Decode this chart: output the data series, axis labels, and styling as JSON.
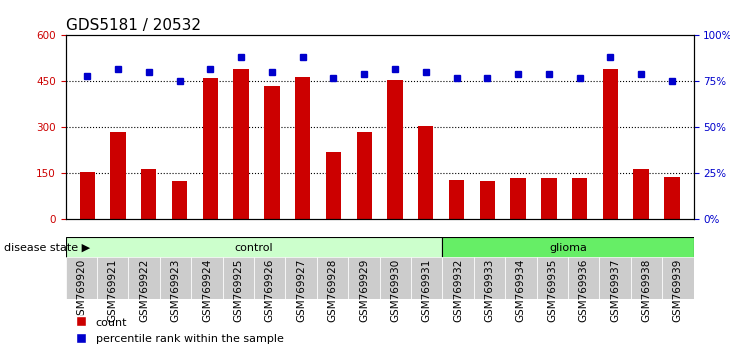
{
  "title": "GDS5181 / 20532",
  "samples": [
    "GSM769920",
    "GSM769921",
    "GSM769922",
    "GSM769923",
    "GSM769924",
    "GSM769925",
    "GSM769926",
    "GSM769927",
    "GSM769928",
    "GSM769929",
    "GSM769930",
    "GSM769931",
    "GSM769932",
    "GSM769933",
    "GSM769934",
    "GSM769935",
    "GSM769936",
    "GSM769937",
    "GSM769938",
    "GSM769939"
  ],
  "counts": [
    155,
    285,
    165,
    125,
    460,
    490,
    435,
    465,
    220,
    285,
    455,
    305,
    130,
    125,
    135,
    135,
    135,
    490,
    165,
    140
  ],
  "percentiles": [
    78,
    82,
    80,
    75,
    82,
    88,
    80,
    88,
    77,
    79,
    82,
    80,
    77,
    77,
    79,
    79,
    77,
    88,
    79,
    75
  ],
  "control_count": 12,
  "glioma_count": 8,
  "bar_color": "#cc0000",
  "dot_color": "#0000cc",
  "control_bg": "#ccffcc",
  "glioma_bg": "#66ee66",
  "left_ylim": [
    0,
    600
  ],
  "right_ylim": [
    0,
    100
  ],
  "left_yticks": [
    0,
    150,
    300,
    450,
    600
  ],
  "right_yticks": [
    0,
    25,
    50,
    75,
    100
  ],
  "right_yticklabels": [
    "0%",
    "25%",
    "50%",
    "75%",
    "100%"
  ],
  "grid_lines": [
    150,
    300,
    450
  ],
  "title_fontsize": 11,
  "tick_fontsize": 7.5,
  "label_fontsize": 8
}
